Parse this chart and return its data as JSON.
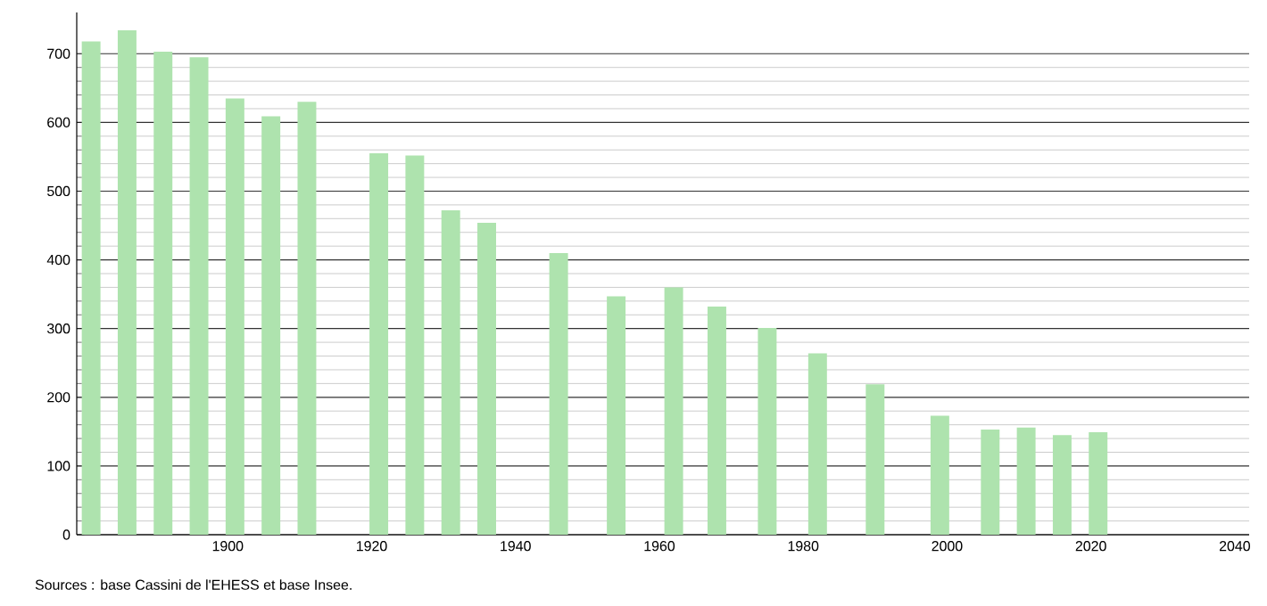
{
  "chart_data": {
    "type": "bar",
    "color": "#aee3ae",
    "x": [
      1881,
      1886,
      1891,
      1896,
      1901,
      1906,
      1911,
      1921,
      1926,
      1931,
      1936,
      1946,
      1954,
      1962,
      1968,
      1975,
      1982,
      1990,
      1999,
      2006,
      2011,
      2016,
      2021
    ],
    "values": [
      718,
      734,
      703,
      695,
      635,
      609,
      630,
      555,
      552,
      472,
      454,
      410,
      347,
      360,
      332,
      301,
      264,
      219,
      173,
      153,
      156,
      145,
      149
    ],
    "xlim": [
      1879,
      2042
    ],
    "xticks": [
      1900,
      1920,
      1940,
      1960,
      1980,
      2000,
      2020,
      2040
    ],
    "ylim": [
      0,
      760
    ],
    "yticks": [
      0,
      100,
      200,
      300,
      400,
      500,
      600,
      700
    ],
    "grid": "y",
    "annotations": [
      "Sources : base Cassini de l'EHESS et base Insee."
    ]
  }
}
